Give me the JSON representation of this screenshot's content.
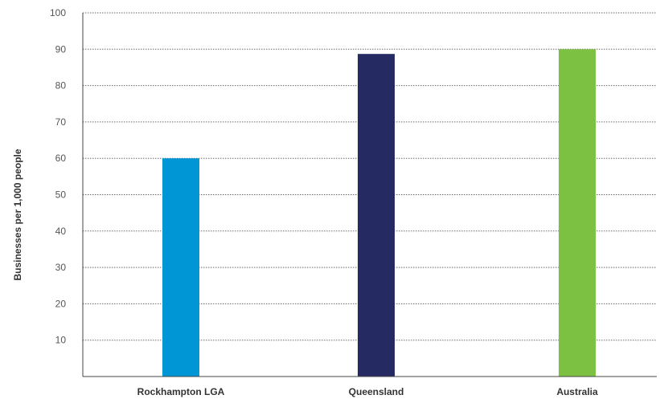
{
  "chart_data": {
    "type": "bar",
    "categories": [
      "Rockhampton LGA",
      "Queensland",
      "Australia"
    ],
    "values": [
      60,
      88.7,
      90
    ],
    "bar_colors": [
      "#0096d6",
      "#262a63",
      "#7dc142"
    ],
    "ylabel": "Businesses per 1,000 people",
    "xlabel": "",
    "ylim": [
      0,
      100
    ],
    "yticks": [
      10,
      20,
      30,
      40,
      50,
      60,
      70,
      80,
      90,
      100
    ],
    "grid": true
  }
}
